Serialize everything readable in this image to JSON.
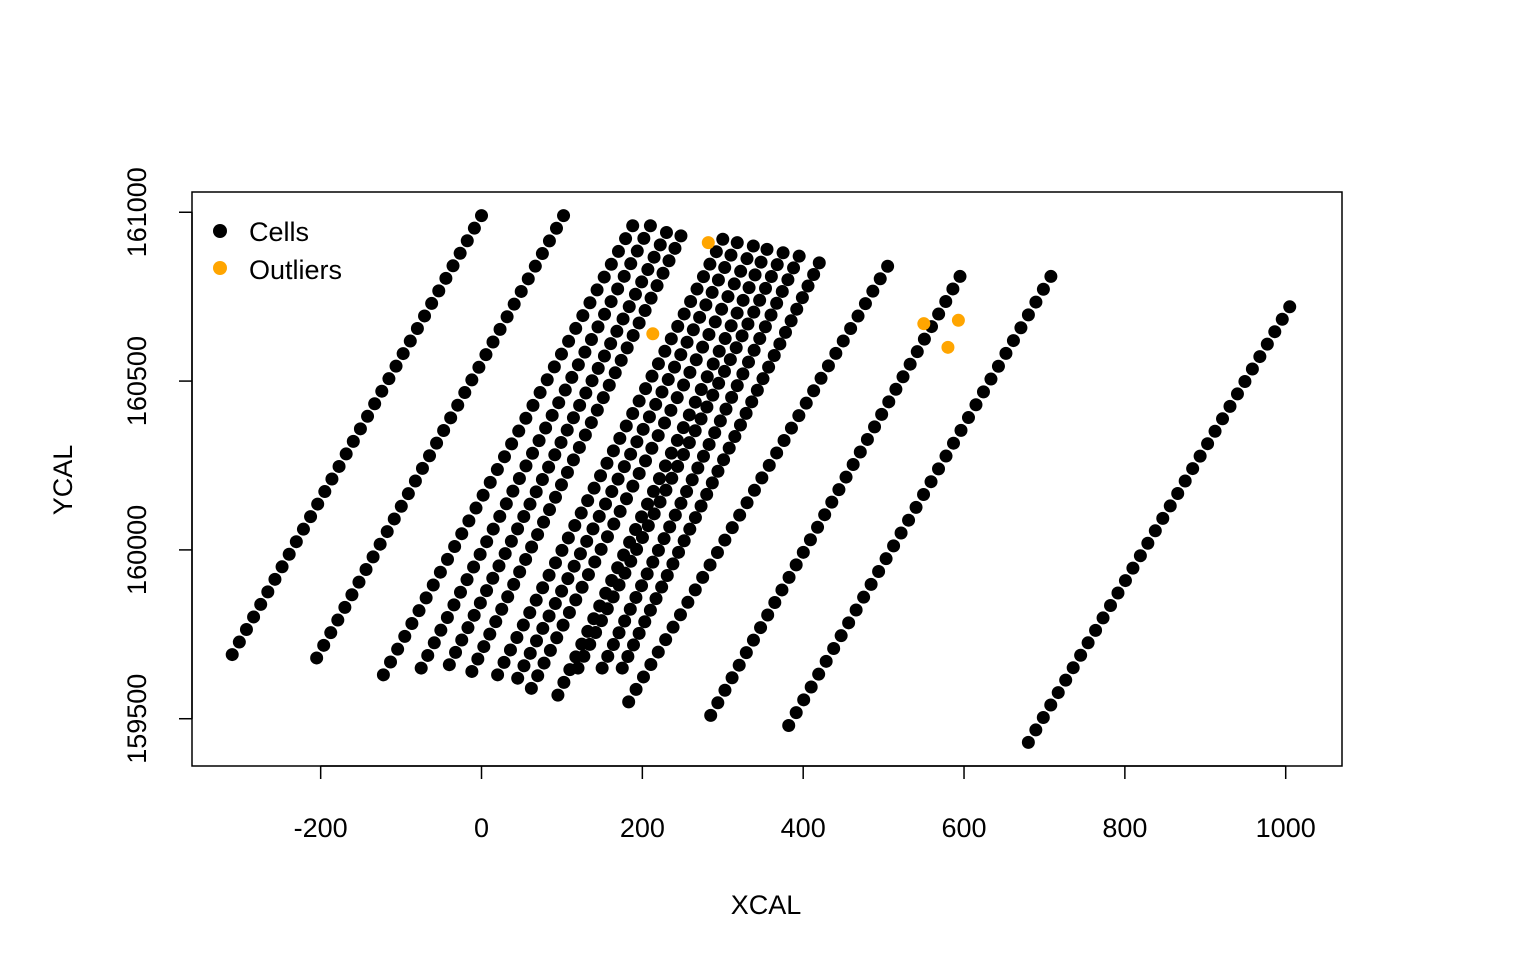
{
  "chart_data": {
    "type": "scatter",
    "title": "",
    "xlabel": "XCAL",
    "ylabel": "YCAL",
    "xlim": [
      -360,
      1070
    ],
    "ylim": [
      159360,
      161060
    ],
    "xticks": [
      -200,
      0,
      200,
      400,
      600,
      800,
      1000
    ],
    "xtick_labels": [
      "-200",
      "0",
      "200",
      "400",
      "600",
      "800",
      "1000"
    ],
    "yticks": [
      159500,
      160000,
      160500,
      161000
    ],
    "ytick_labels": [
      "159500",
      "160000",
      "160500",
      "161000"
    ],
    "grid": false,
    "legend_position": "top-left",
    "legend": [
      {
        "label": "Cells",
        "color": "#000000"
      },
      {
        "label": "Outliers",
        "color": "#FFA500"
      }
    ],
    "colors": {
      "cells": "#000000",
      "outliers": "#FFA500"
    },
    "cell_tracks": [
      {
        "start": [
          -310,
          159690
        ],
        "end": [
          0,
          160990
        ]
      },
      {
        "start": [
          -205,
          159680
        ],
        "end": [
          102,
          160990
        ]
      },
      {
        "start": [
          -122,
          159630
        ],
        "end": [
          188,
          160960
        ]
      },
      {
        "start": [
          -75,
          159650
        ],
        "end": [
          210,
          160960
        ]
      },
      {
        "start": [
          -40,
          159660
        ],
        "end": [
          230,
          160940
        ]
      },
      {
        "start": [
          -12,
          159640
        ],
        "end": [
          248,
          160930
        ]
      },
      {
        "start": [
          20,
          159630
        ],
        "end": [
          300,
          160920
        ]
      },
      {
        "start": [
          45,
          159620
        ],
        "end": [
          318,
          160910
        ]
      },
      {
        "start": [
          62,
          159590
        ],
        "end": [
          338,
          160900
        ]
      },
      {
        "start": [
          95,
          159570
        ],
        "end": [
          355,
          160890
        ]
      },
      {
        "start": [
          120,
          159650
        ],
        "end": [
          375,
          160880
        ]
      },
      {
        "start": [
          150,
          159650
        ],
        "end": [
          395,
          160870
        ]
      },
      {
        "start": [
          175,
          159650
        ],
        "end": [
          420,
          160850
        ]
      },
      {
        "start": [
          183,
          159550
        ],
        "end": [
          505,
          160840
        ]
      },
      {
        "start": [
          285,
          159510
        ],
        "end": [
          595,
          160810
        ]
      },
      {
        "start": [
          382,
          159480
        ],
        "end": [
          708,
          160810
        ]
      },
      {
        "start": [
          680,
          159430
        ],
        "end": [
          1005,
          160720
        ]
      }
    ],
    "cell_points_per_track": 36,
    "series": [
      {
        "name": "Outliers",
        "points": [
          {
            "x": 282,
            "y": 160910
          },
          {
            "x": 213,
            "y": 160640
          },
          {
            "x": 550,
            "y": 160670
          },
          {
            "x": 593,
            "y": 160680
          },
          {
            "x": 580,
            "y": 160600
          }
        ]
      }
    ]
  }
}
